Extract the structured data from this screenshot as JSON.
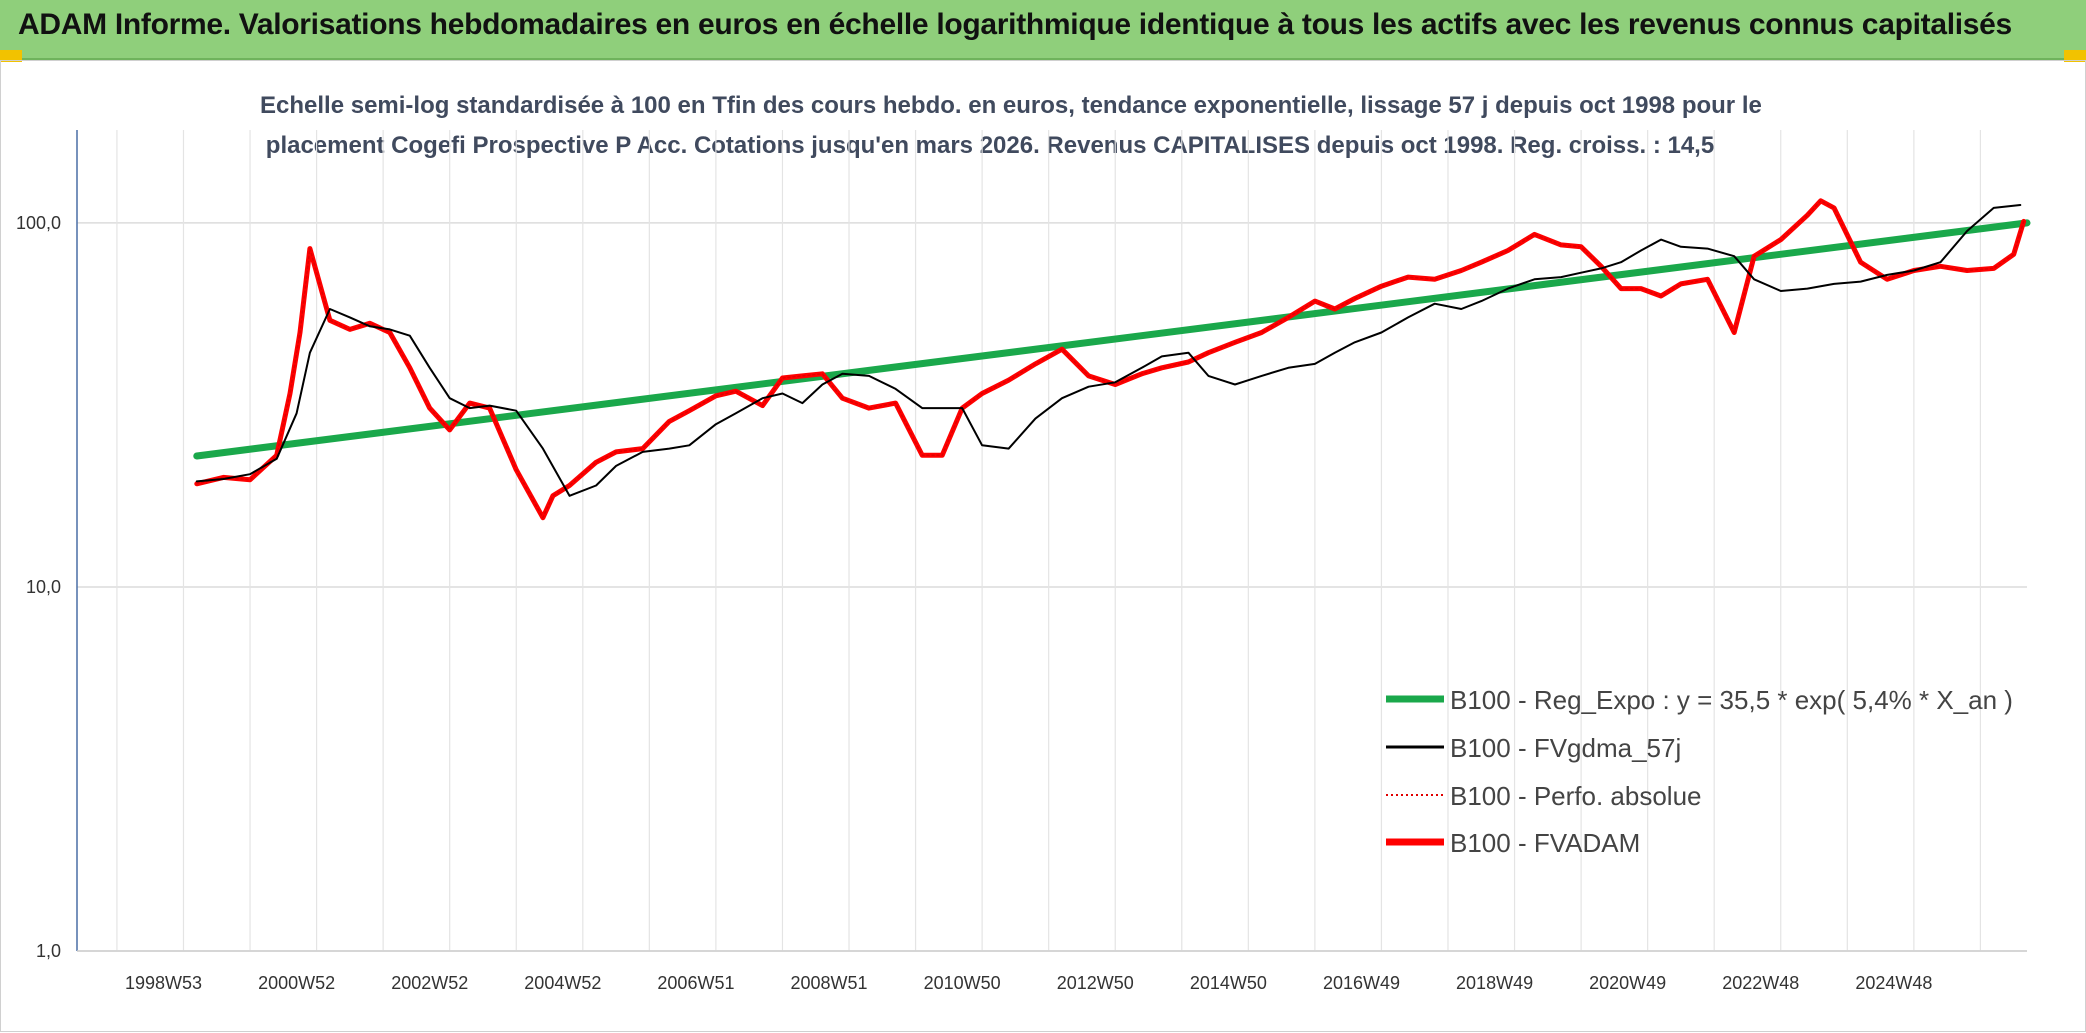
{
  "header": {
    "title": "ADAM Informe. Valorisations hebdomadaires en euros en échelle logarithmique identique à tous les actifs avec les revenus connus capitalisés"
  },
  "chart_data": {
    "type": "line",
    "title_line1": "Echelle semi-log standardisée à 100 en Tfin des cours hebdo. en euros, tendance exponentielle, lissage 57 j depuis oct 1998 pour le",
    "title_line2": "placement Cogefi Prospective P Acc. Cotations jusqu'en mars 2026. Revenus CAPITALISES depuis oct 1998. Reg. croiss. : 14,5",
    "y_scale": "log",
    "ylim": [
      1,
      180
    ],
    "y_ticks": [
      "1,0",
      "10,0",
      "100,0"
    ],
    "x_ticks": [
      "1998W53",
      "2000W52",
      "2002W52",
      "2004W52",
      "2006W51",
      "2008W51",
      "2010W50",
      "2012W50",
      "2014W50",
      "2016W49",
      "2018W49",
      "2020W49",
      "2022W48",
      "2024W48"
    ],
    "xlim": [
      1998.0,
      2027.3
    ],
    "grid": true,
    "legend_position": "bottom-right",
    "colors": {
      "reg": "#1aa84b",
      "fvgdma": "#000000",
      "perfo": "#e00000",
      "fvadam": "#ff0000"
    },
    "series": [
      {
        "name": "B100 - Reg_Expo : y = 35,5 * exp( 5,4% *  X_an )",
        "style": "thick-green",
        "x": [
          1999.8,
          2027.3
        ],
        "y": [
          22.9,
          100
        ]
      },
      {
        "name": "B100 - FVgdma_57j",
        "style": "thin-black",
        "x": [
          1999.8,
          2000.2,
          2000.6,
          2001.0,
          2001.3,
          2001.5,
          2001.8,
          2002.1,
          2002.4,
          2002.7,
          2003.0,
          2003.3,
          2003.6,
          2003.9,
          2004.2,
          2004.6,
          2005.0,
          2005.4,
          2005.8,
          2006.1,
          2006.5,
          2006.9,
          2007.2,
          2007.6,
          2007.9,
          2008.3,
          2008.6,
          2008.9,
          2009.2,
          2009.5,
          2009.9,
          2010.3,
          2010.7,
          2011.0,
          2011.3,
          2011.6,
          2012.0,
          2012.4,
          2012.8,
          2013.2,
          2013.6,
          2014.0,
          2014.3,
          2014.7,
          2015.0,
          2015.4,
          2015.8,
          2016.2,
          2016.6,
          2016.9,
          2017.2,
          2017.6,
          2018.0,
          2018.4,
          2018.8,
          2019.1,
          2019.5,
          2019.9,
          2020.3,
          2020.6,
          2020.9,
          2021.2,
          2021.5,
          2021.8,
          2022.1,
          2022.5,
          2022.9,
          2023.2,
          2023.6,
          2024.0,
          2024.4,
          2024.8,
          2025.2,
          2025.6,
          2026.0,
          2026.4,
          2026.8,
          2027.2
        ],
        "y": [
          19.5,
          19.8,
          20.4,
          22.5,
          30.0,
          44.0,
          58.0,
          55.0,
          52.0,
          51.0,
          49.0,
          40.0,
          33.0,
          31.0,
          31.5,
          30.5,
          24.0,
          17.8,
          19.0,
          21.5,
          23.5,
          24.0,
          24.5,
          28.0,
          30.0,
          33.0,
          34.0,
          32.0,
          36.0,
          38.5,
          38.0,
          35.0,
          31.0,
          31.0,
          31.0,
          24.5,
          24.0,
          29.0,
          33.0,
          35.5,
          36.5,
          40.0,
          43.0,
          44.0,
          38.0,
          36.0,
          38.0,
          40.0,
          41.0,
          44.0,
          47.0,
          50.0,
          55.0,
          60.0,
          58.0,
          61.0,
          66.0,
          70.0,
          71.0,
          73.0,
          75.0,
          78.0,
          84.0,
          90.0,
          86.0,
          85.0,
          81.0,
          70.0,
          65.0,
          66.0,
          68.0,
          69.0,
          72.0,
          74.0,
          78.0,
          95.0,
          110.0,
          112.0
        ]
      },
      {
        "name": "B100 - Perfo. absolue",
        "style": "dotted-red"
      },
      {
        "name": "B100 - FVADAM",
        "style": "thick-red",
        "x": [
          1999.8,
          2000.2,
          2000.6,
          2001.0,
          2001.2,
          2001.35,
          2001.5,
          2001.8,
          2002.1,
          2002.4,
          2002.7,
          2003.0,
          2003.3,
          2003.6,
          2003.9,
          2004.2,
          2004.6,
          2005.0,
          2005.15,
          2005.4,
          2005.8,
          2006.1,
          2006.5,
          2006.9,
          2007.2,
          2007.6,
          2007.9,
          2008.3,
          2008.6,
          2008.9,
          2009.2,
          2009.5,
          2009.9,
          2010.3,
          2010.7,
          2011.0,
          2011.3,
          2011.6,
          2012.0,
          2012.4,
          2012.8,
          2013.2,
          2013.6,
          2014.0,
          2014.3,
          2014.7,
          2015.0,
          2015.4,
          2015.8,
          2016.2,
          2016.6,
          2016.9,
          2017.2,
          2017.6,
          2018.0,
          2018.4,
          2018.8,
          2019.1,
          2019.5,
          2019.9,
          2020.3,
          2020.6,
          2020.9,
          2021.2,
          2021.5,
          2021.8,
          2022.1,
          2022.5,
          2022.9,
          2023.2,
          2023.6,
          2024.0,
          2024.2,
          2024.4,
          2024.8,
          2025.2,
          2025.6,
          2026.0,
          2026.4,
          2026.8,
          2027.1,
          2027.25
        ],
        "y": [
          19.2,
          20.0,
          19.7,
          23.0,
          34.0,
          50.0,
          85.0,
          54.0,
          51.0,
          53.0,
          50.0,
          40.0,
          31.0,
          27.0,
          32.0,
          31.0,
          21.0,
          15.5,
          17.8,
          19.0,
          22.0,
          23.5,
          24.0,
          28.5,
          30.5,
          33.5,
          34.5,
          31.5,
          37.5,
          38.0,
          38.5,
          33.0,
          31.0,
          32.0,
          23.0,
          23.0,
          31.0,
          34.0,
          37.0,
          41.0,
          45.0,
          38.0,
          36.0,
          38.5,
          40.0,
          41.5,
          44.0,
          47.0,
          50.0,
          55.0,
          61.0,
          58.0,
          62.0,
          67.0,
          71.0,
          70.0,
          74.0,
          78.0,
          84.0,
          93.0,
          87.0,
          86.0,
          76.0,
          66.0,
          66.0,
          63.0,
          68.0,
          70.0,
          50.0,
          81.0,
          90.0,
          105.0,
          115.0,
          110.0,
          78.0,
          70.0,
          74.0,
          76.0,
          74.0,
          75.0,
          82.0,
          101.0
        ]
      }
    ],
    "legend_labels": {
      "reg": "B100 - Reg_Expo : y = 35,5 * exp( 5,4% *  X_an )",
      "fvgdma": "B100 - FVgdma_57j",
      "perfo": "B100 - Perfo. absolue",
      "fvadam": "B100 - FVADAM"
    }
  }
}
